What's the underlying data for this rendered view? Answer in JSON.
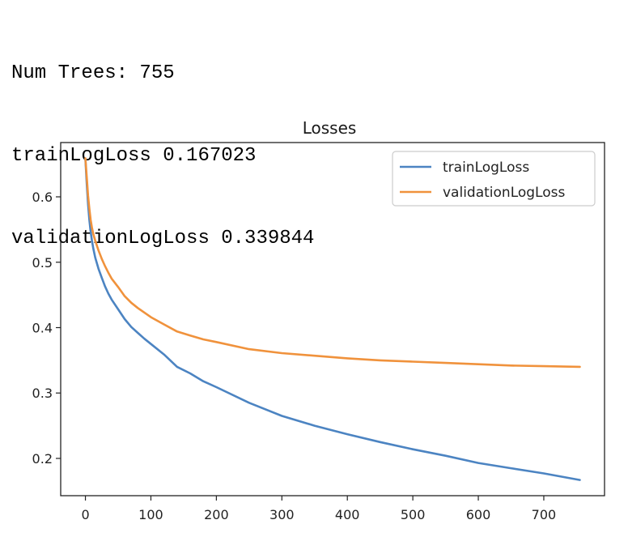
{
  "output": {
    "lines": [
      "Num Trees: 755",
      "trainLogLoss 0.167023",
      "validationLogLoss 0.339844"
    ]
  },
  "chart_data": {
    "type": "line",
    "title": "Losses",
    "xlabel": "",
    "ylabel": "",
    "xlim": [
      -37.75,
      792.75
    ],
    "ylim": [
      0.143,
      0.683
    ],
    "xticks": [
      0,
      100,
      200,
      300,
      400,
      500,
      600,
      700
    ],
    "yticks": [
      0.2,
      0.3,
      0.4,
      0.5,
      0.6
    ],
    "legend_position": "top-right",
    "grid": false,
    "series": [
      {
        "name": "trainLogLoss",
        "color": "#4c84c2",
        "x": [
          0,
          2,
          4,
          6,
          8,
          10,
          12,
          15,
          20,
          25,
          30,
          35,
          40,
          50,
          60,
          70,
          80,
          90,
          100,
          120,
          140,
          160,
          180,
          200,
          250,
          300,
          350,
          400,
          450,
          500,
          550,
          600,
          650,
          700,
          755
        ],
        "y": [
          0.658,
          0.62,
          0.589,
          0.565,
          0.547,
          0.533,
          0.521,
          0.507,
          0.49,
          0.476,
          0.463,
          0.452,
          0.443,
          0.428,
          0.413,
          0.401,
          0.392,
          0.383,
          0.375,
          0.359,
          0.34,
          0.33,
          0.318,
          0.309,
          0.285,
          0.265,
          0.25,
          0.237,
          0.225,
          0.214,
          0.204,
          0.193,
          0.185,
          0.177,
          0.167
        ]
      },
      {
        "name": "validationLogLoss",
        "color": "#f0923c",
        "x": [
          0,
          2,
          4,
          6,
          8,
          10,
          12,
          15,
          20,
          25,
          30,
          35,
          40,
          50,
          60,
          70,
          80,
          90,
          100,
          120,
          140,
          160,
          180,
          200,
          250,
          300,
          350,
          400,
          450,
          500,
          550,
          600,
          650,
          700,
          755
        ],
        "y": [
          0.659,
          0.63,
          0.602,
          0.582,
          0.565,
          0.553,
          0.543,
          0.533,
          0.518,
          0.505,
          0.494,
          0.484,
          0.475,
          0.462,
          0.448,
          0.438,
          0.43,
          0.423,
          0.416,
          0.405,
          0.394,
          0.388,
          0.382,
          0.378,
          0.367,
          0.361,
          0.357,
          0.353,
          0.35,
          0.348,
          0.346,
          0.344,
          0.342,
          0.341,
          0.34
        ]
      }
    ]
  }
}
